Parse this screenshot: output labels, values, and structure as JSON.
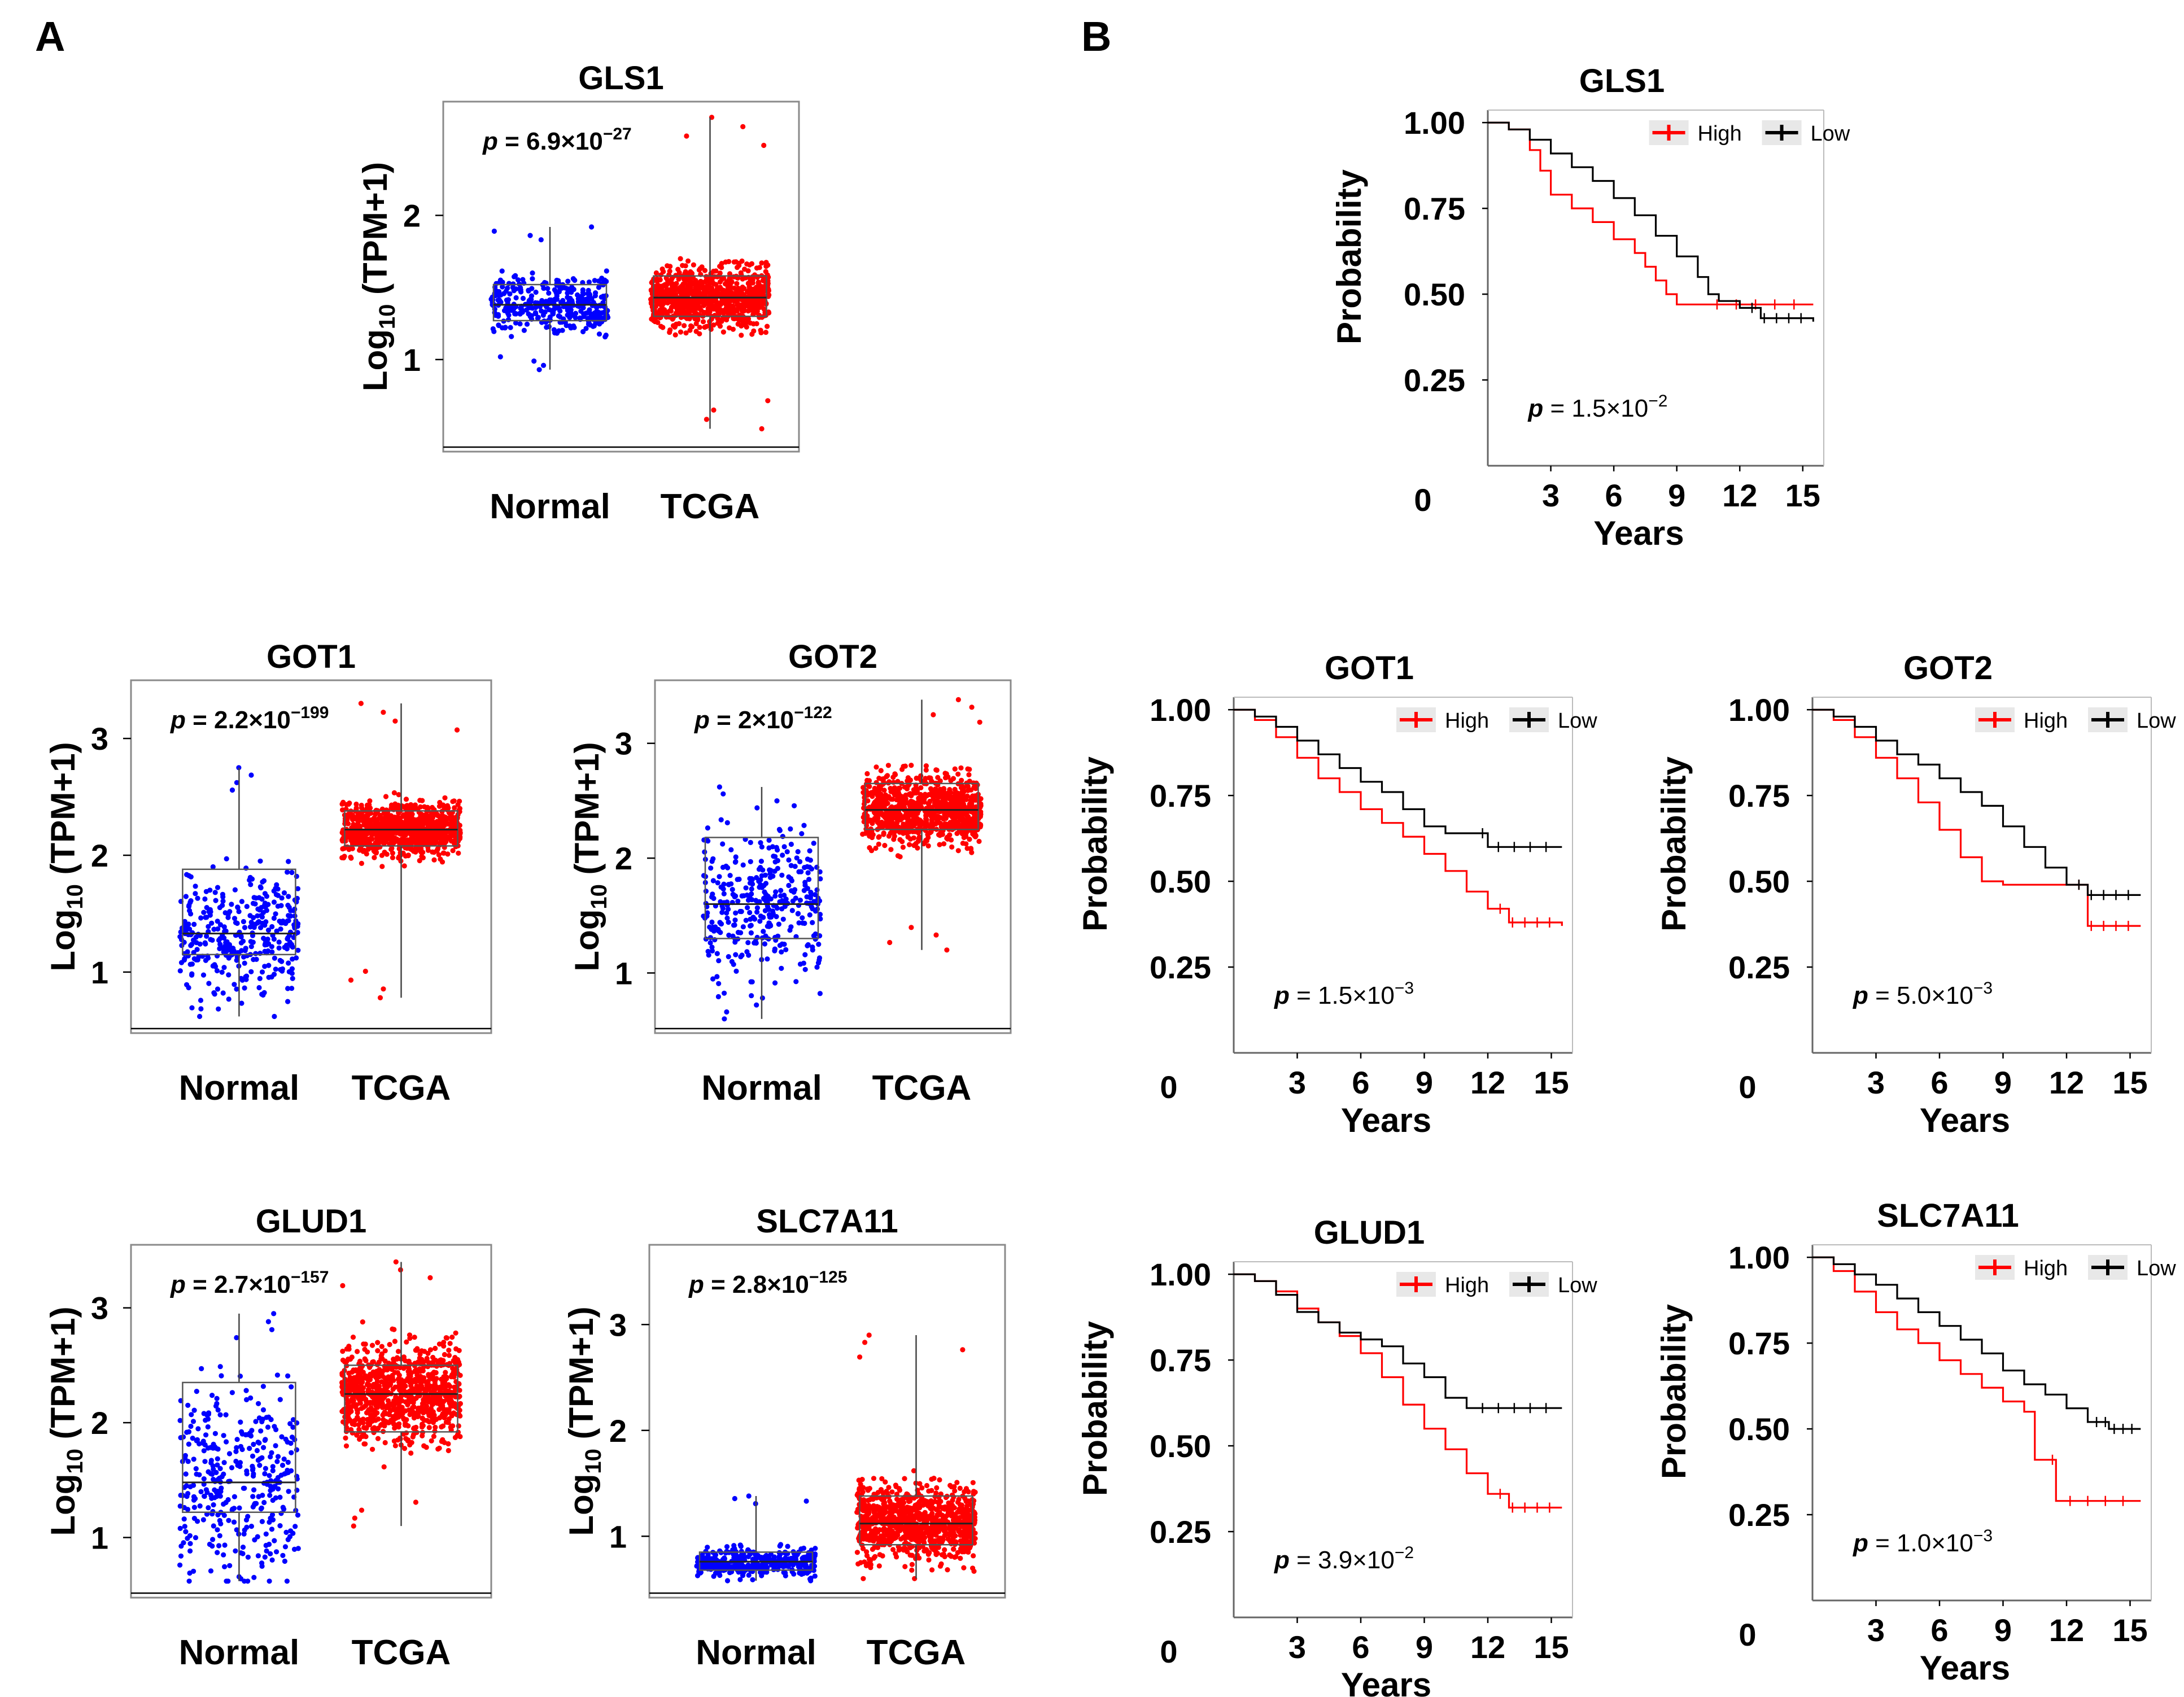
{
  "figure": {
    "panel_labels": [
      "A",
      "B"
    ],
    "colors": {
      "normal": "#0000ff",
      "tcga": "#ff0000",
      "high": "#ff0000",
      "low": "#000000"
    }
  },
  "chart_data": [
    {
      "type": "scatter",
      "subtype": "box-jitter",
      "title": "GLS1",
      "ylabel": "Log",
      "ylabel_sub": "10",
      "ylabel_rest": " (TPM+1)",
      "categories": [
        "Normal",
        "TCGA"
      ],
      "y_ticks": [
        1,
        2
      ],
      "ylim": [
        0.42,
        2.75
      ],
      "p_prefix": "p",
      "p_text": " = 6.9×10",
      "p_exp": "−27",
      "groups": [
        {
          "name": "Normal",
          "color": "#0000ff",
          "n": 360,
          "q1": 1.27,
          "median": 1.38,
          "q3": 1.52,
          "min": 0.93,
          "max": 1.92
        },
        {
          "name": "TCGA",
          "color": "#ff0000",
          "n": 900,
          "q1": 1.3,
          "median": 1.43,
          "q3": 1.58,
          "min": 0.52,
          "max": 2.68
        }
      ]
    },
    {
      "type": "scatter",
      "subtype": "box-jitter",
      "title": "GOT1",
      "ylabel": "Log",
      "ylabel_sub": "10",
      "ylabel_rest": " (TPM+1)",
      "categories": [
        "Normal",
        "TCGA"
      ],
      "y_ticks": [
        1,
        2,
        3
      ],
      "ylim": [
        0.55,
        3.45
      ],
      "p_prefix": "p",
      "p_text": " = 2.2×10",
      "p_exp": "−199",
      "groups": [
        {
          "name": "Normal",
          "color": "#0000ff",
          "n": 360,
          "q1": 1.15,
          "median": 1.33,
          "q3": 1.88,
          "min": 0.62,
          "max": 2.75
        },
        {
          "name": "TCGA",
          "color": "#ff0000",
          "n": 900,
          "q1": 2.08,
          "median": 2.22,
          "q3": 2.38,
          "min": 0.78,
          "max": 3.3
        }
      ]
    },
    {
      "type": "scatter",
      "subtype": "box-jitter",
      "title": "GOT2",
      "ylabel": "Log",
      "ylabel_sub": "10",
      "ylabel_rest": " (TPM+1)",
      "categories": [
        "Normal",
        "TCGA"
      ],
      "y_ticks": [
        1,
        2,
        3
      ],
      "ylim": [
        0.55,
        3.5
      ],
      "p_prefix": "p",
      "p_text": " = 2×10",
      "p_exp": "−122",
      "groups": [
        {
          "name": "Normal",
          "color": "#0000ff",
          "n": 360,
          "q1": 1.3,
          "median": 1.6,
          "q3": 2.18,
          "min": 0.6,
          "max": 2.62
        },
        {
          "name": "TCGA",
          "color": "#ff0000",
          "n": 900,
          "q1": 2.25,
          "median": 2.42,
          "q3": 2.65,
          "min": 1.2,
          "max": 3.38
        }
      ]
    },
    {
      "type": "scatter",
      "subtype": "box-jitter",
      "title": "GLUD1",
      "ylabel": "Log",
      "ylabel_sub": "10",
      "ylabel_rest": " (TPM+1)",
      "categories": [
        "Normal",
        "TCGA"
      ],
      "y_ticks": [
        1,
        2,
        3
      ],
      "ylim": [
        0.55,
        3.5
      ],
      "p_prefix": "p",
      "p_text": " = 2.7×10",
      "p_exp": "−157",
      "groups": [
        {
          "name": "Normal",
          "color": "#0000ff",
          "n": 360,
          "q1": 1.22,
          "median": 1.48,
          "q3": 2.35,
          "min": 0.62,
          "max": 2.95
        },
        {
          "name": "TCGA",
          "color": "#ff0000",
          "n": 900,
          "q1": 1.92,
          "median": 2.25,
          "q3": 2.5,
          "min": 1.1,
          "max": 3.4
        }
      ]
    },
    {
      "type": "scatter",
      "subtype": "box-jitter",
      "title": "SLC7A11",
      "ylabel": "Log",
      "ylabel_sub": "10",
      "ylabel_rest": " (TPM+1)",
      "categories": [
        "Normal",
        "TCGA"
      ],
      "y_ticks": [
        1,
        2,
        3
      ],
      "ylim": [
        0.5,
        3.7
      ],
      "p_prefix": "p",
      "p_text": " = 2.8×10",
      "p_exp": "−125",
      "groups": [
        {
          "name": "Normal",
          "color": "#0000ff",
          "n": 360,
          "q1": 0.68,
          "median": 0.76,
          "q3": 0.85,
          "min": 0.58,
          "max": 1.38
        },
        {
          "name": "TCGA",
          "color": "#ff0000",
          "n": 900,
          "q1": 0.92,
          "median": 1.12,
          "q3": 1.38,
          "min": 0.6,
          "max": 2.9
        }
      ]
    },
    {
      "type": "line",
      "subtype": "kaplan-meier",
      "title": "GLS1",
      "xlabel": "Years",
      "ylabel": "Probability",
      "x_ticks": [
        3,
        6,
        9,
        12,
        15
      ],
      "y_ticks": [
        0.25,
        0.5,
        0.75,
        1.0
      ],
      "y_tick_labels": [
        "0.25",
        "0.50",
        "0.75",
        "1.00"
      ],
      "x_zero_label": "0",
      "xlim": [
        0,
        16
      ],
      "ylim": [
        0,
        1.02
      ],
      "p_prefix": "p",
      "p_text": " = 1.5×10",
      "p_exp": "−2",
      "legend": [
        "High",
        "Low"
      ],
      "series": [
        {
          "name": "High",
          "color": "#ff0000",
          "x": [
            0,
            1,
            2,
            2.5,
            3,
            4,
            5,
            6,
            7,
            7.5,
            8,
            8.5,
            9,
            10,
            12,
            15.5
          ],
          "y": [
            1.0,
            0.98,
            0.92,
            0.86,
            0.79,
            0.75,
            0.71,
            0.66,
            0.62,
            0.58,
            0.54,
            0.5,
            0.47,
            0.47,
            0.47,
            0.47
          ]
        },
        {
          "name": "Low",
          "color": "#000000",
          "x": [
            0,
            1,
            2,
            3,
            4,
            5,
            6,
            7,
            8,
            9,
            10,
            10.5,
            11,
            12,
            13,
            15.5
          ],
          "y": [
            1.0,
            0.98,
            0.95,
            0.91,
            0.87,
            0.83,
            0.78,
            0.73,
            0.67,
            0.61,
            0.55,
            0.5,
            0.48,
            0.46,
            0.43,
            0.42
          ]
        }
      ]
    },
    {
      "type": "line",
      "subtype": "kaplan-meier",
      "title": "GOT1",
      "xlabel": "Years",
      "ylabel": "Probability",
      "x_ticks": [
        3,
        6,
        9,
        12,
        15
      ],
      "y_ticks": [
        0.25,
        0.5,
        0.75,
        1.0
      ],
      "y_tick_labels": [
        "0.25",
        "0.50",
        "0.75",
        "1.00"
      ],
      "x_zero_label": "0",
      "xlim": [
        0,
        16
      ],
      "ylim": [
        0,
        1.02
      ],
      "p_prefix": "p",
      "p_text": " = 1.5×10",
      "p_exp": "−3",
      "legend": [
        "High",
        "Low"
      ],
      "series": [
        {
          "name": "High",
          "color": "#ff0000",
          "x": [
            0,
            1,
            2,
            3,
            4,
            5,
            6,
            7,
            8,
            9,
            10,
            11,
            12,
            13,
            15.5
          ],
          "y": [
            1.0,
            0.97,
            0.92,
            0.86,
            0.8,
            0.76,
            0.71,
            0.67,
            0.63,
            0.58,
            0.53,
            0.47,
            0.42,
            0.38,
            0.37
          ]
        },
        {
          "name": "Low",
          "color": "#000000",
          "x": [
            0,
            1,
            2,
            3,
            4,
            5,
            6,
            7,
            8,
            9,
            10,
            11,
            12,
            15.5
          ],
          "y": [
            1.0,
            0.98,
            0.95,
            0.91,
            0.87,
            0.83,
            0.79,
            0.76,
            0.71,
            0.66,
            0.64,
            0.64,
            0.6,
            0.6
          ]
        }
      ]
    },
    {
      "type": "line",
      "subtype": "kaplan-meier",
      "title": "GOT2",
      "xlabel": "Years",
      "ylabel": "Probability",
      "x_ticks": [
        3,
        6,
        9,
        12,
        15
      ],
      "y_ticks": [
        0.25,
        0.5,
        0.75,
        1.0
      ],
      "y_tick_labels": [
        "0.25",
        "0.50",
        "0.75",
        "1.00"
      ],
      "x_zero_label": "0",
      "xlim": [
        0,
        16
      ],
      "ylim": [
        0,
        1.02
      ],
      "p_prefix": "p",
      "p_text": " = 5.0×10",
      "p_exp": "−3",
      "legend": [
        "High",
        "Low"
      ],
      "series": [
        {
          "name": "High",
          "color": "#ff0000",
          "x": [
            0,
            1,
            2,
            3,
            4,
            5,
            6,
            7,
            8,
            9,
            10,
            12,
            13,
            15.5
          ],
          "y": [
            1.0,
            0.97,
            0.92,
            0.86,
            0.8,
            0.73,
            0.65,
            0.57,
            0.5,
            0.49,
            0.49,
            0.49,
            0.37,
            0.37
          ]
        },
        {
          "name": "Low",
          "color": "#000000",
          "x": [
            0,
            1,
            2,
            3,
            4,
            5,
            6,
            7,
            8,
            9,
            10,
            11,
            12,
            13,
            15.5
          ],
          "y": [
            1.0,
            0.98,
            0.95,
            0.91,
            0.87,
            0.84,
            0.8,
            0.76,
            0.72,
            0.66,
            0.6,
            0.54,
            0.49,
            0.46,
            0.46
          ]
        }
      ]
    },
    {
      "type": "line",
      "subtype": "kaplan-meier",
      "title": "GLUD1",
      "xlabel": "Years",
      "ylabel": "Probability",
      "x_ticks": [
        3,
        6,
        9,
        12,
        15
      ],
      "y_ticks": [
        0.25,
        0.5,
        0.75,
        1.0
      ],
      "y_tick_labels": [
        "0.25",
        "0.50",
        "0.75",
        "1.00"
      ],
      "x_zero_label": "0",
      "xlim": [
        0,
        16
      ],
      "ylim": [
        0,
        1.02
      ],
      "p_prefix": "p",
      "p_text": " = 3.9×10",
      "p_exp": "−2",
      "legend": [
        "High",
        "Low"
      ],
      "series": [
        {
          "name": "High",
          "color": "#ff0000",
          "x": [
            0,
            1,
            2,
            3,
            4,
            5,
            6,
            7,
            8,
            9,
            10,
            11,
            12,
            13,
            15.5
          ],
          "y": [
            1.0,
            0.98,
            0.95,
            0.9,
            0.86,
            0.82,
            0.77,
            0.7,
            0.62,
            0.55,
            0.49,
            0.42,
            0.36,
            0.32,
            0.32
          ]
        },
        {
          "name": "Low",
          "color": "#000000",
          "x": [
            0,
            1,
            2,
            3,
            4,
            5,
            6,
            7,
            8,
            9,
            10,
            11,
            12,
            15.5
          ],
          "y": [
            1.0,
            0.98,
            0.94,
            0.89,
            0.86,
            0.83,
            0.81,
            0.79,
            0.74,
            0.7,
            0.64,
            0.61,
            0.61,
            0.61
          ]
        }
      ]
    },
    {
      "type": "line",
      "subtype": "kaplan-meier",
      "title": "SLC7A11",
      "xlabel": "Years",
      "ylabel": "Probability",
      "x_ticks": [
        3,
        6,
        9,
        12,
        15
      ],
      "y_ticks": [
        0.25,
        0.5,
        0.75,
        1.0
      ],
      "y_tick_labels": [
        "0.25",
        "0.50",
        "0.75",
        "1.00"
      ],
      "x_zero_label": "0",
      "xlim": [
        0,
        16
      ],
      "ylim": [
        0,
        1.02
      ],
      "p_prefix": "p",
      "p_text": " = 1.0×10",
      "p_exp": "−3",
      "legend": [
        "High",
        "Low"
      ],
      "series": [
        {
          "name": "High",
          "color": "#ff0000",
          "x": [
            0,
            1,
            2,
            3,
            4,
            5,
            6,
            7,
            8,
            9,
            10,
            10.5,
            11.5,
            15.5
          ],
          "y": [
            1.0,
            0.96,
            0.9,
            0.84,
            0.79,
            0.75,
            0.7,
            0.66,
            0.62,
            0.58,
            0.55,
            0.41,
            0.29,
            0.29
          ]
        },
        {
          "name": "Low",
          "color": "#000000",
          "x": [
            0,
            1,
            2,
            3,
            4,
            5,
            6,
            7,
            8,
            9,
            10,
            11,
            12,
            13,
            14,
            15.5
          ],
          "y": [
            1.0,
            0.98,
            0.95,
            0.92,
            0.88,
            0.84,
            0.8,
            0.76,
            0.72,
            0.67,
            0.63,
            0.6,
            0.56,
            0.52,
            0.5,
            0.5
          ]
        }
      ]
    }
  ]
}
